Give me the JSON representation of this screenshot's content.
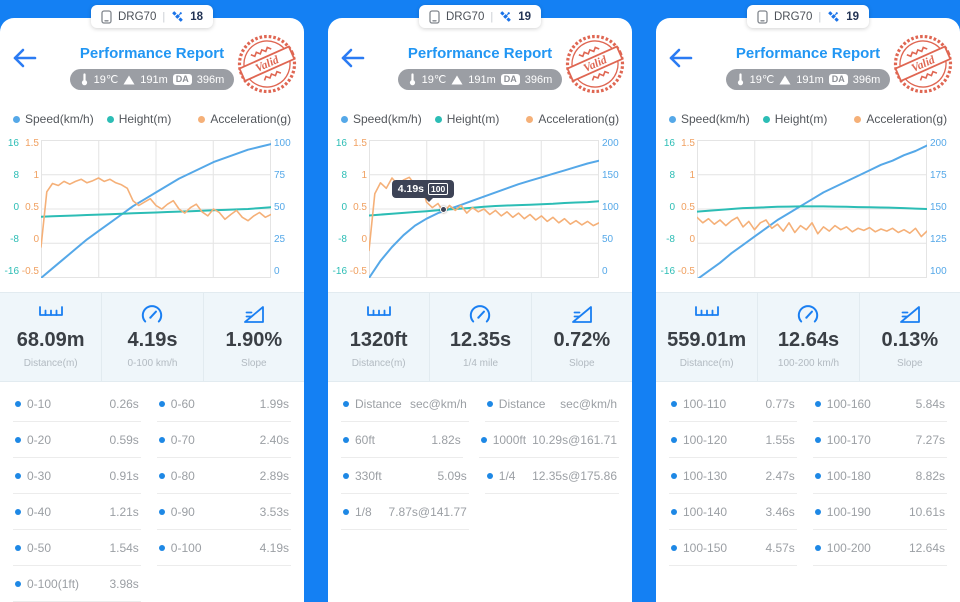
{
  "app": {
    "background_color": "#1480f3",
    "accent_blue": "#2196f3"
  },
  "panels": [
    {
      "statusbar": {
        "device": "DRG70",
        "divider": "|",
        "satellites": "18"
      },
      "header": {
        "title": "Performance Report",
        "temperature": "19℃",
        "altitude": "191m",
        "da_label": "DA",
        "da_value": "396m",
        "stamp_text": "Valid"
      },
      "legend": [
        {
          "label": "Speed(km/h)",
          "color": "#55a8e8"
        },
        {
          "label": "Height(m)",
          "color": "#2cbdb5"
        },
        {
          "label": "Acceleration(g)",
          "color": "#f5b078"
        }
      ],
      "chart": {
        "type": "line",
        "grid": true,
        "left_ticks_teal": [
          "16",
          "8",
          "0",
          "-8",
          "-16"
        ],
        "left_ticks_orange": [
          "1.5",
          "1",
          "0.5",
          "0",
          "-0.5"
        ],
        "right_ticks_blue": [
          "100",
          "75",
          "50",
          "25",
          "0"
        ],
        "axes": {
          "teal": [
            -16,
            16
          ],
          "orange": [
            -0.5,
            1.5
          ],
          "blue": [
            0,
            100
          ]
        },
        "series": [
          {
            "name": "Speed(km/h)",
            "axis": "blue",
            "color": "#55a8e8",
            "width": 2,
            "values": [
              0,
              7,
              14,
              21,
              28,
              34,
              40,
              46,
              52,
              57,
              62,
              67,
              72,
              76,
              80,
              84,
              87,
              90,
              93,
              95,
              97
            ]
          },
          {
            "name": "Height(m)",
            "axis": "teal",
            "color": "#2cbdb5",
            "width": 2,
            "values": [
              -1.8,
              -1.7,
              -1.6,
              -1.5,
              -1.4,
              -1.3,
              -1.2,
              -1.1,
              -1.0,
              -0.9,
              -0.8,
              -0.7,
              -0.6,
              -0.5,
              -0.4,
              -0.3,
              -0.2,
              -0.1,
              0,
              0.2,
              0.4
            ]
          },
          {
            "name": "Acceleration(g)",
            "axis": "orange",
            "color": "#f5b078",
            "width": 1.6,
            "values": [
              -0.05,
              0.75,
              0.87,
              0.84,
              0.9,
              0.86,
              0.9,
              0.93,
              0.88,
              0.91,
              0.95,
              0.9,
              0.93,
              0.88,
              0.85,
              0.8,
              0.62,
              0.55,
              0.6,
              0.65,
              0.55,
              0.5,
              0.57,
              0.62,
              0.5,
              0.44,
              0.52,
              0.57,
              0.46,
              0.4,
              0.5,
              0.45,
              0.35,
              0.42,
              0.48,
              0.38,
              0.33,
              0.4,
              0.45,
              0.38,
              0.42
            ]
          }
        ],
        "tooltip": null
      },
      "stats": [
        {
          "icon": "ruler",
          "value": "68.09m",
          "label": "Distance(m)"
        },
        {
          "icon": "gauge",
          "value": "4.19s",
          "label": "0-100 km/h"
        },
        {
          "icon": "slope",
          "value": "1.90%",
          "label": "Slope"
        }
      ],
      "table": {
        "rows": [
          [
            {
              "label": "0-10",
              "value": "0.26s"
            },
            {
              "label": "0-60",
              "value": "1.99s"
            }
          ],
          [
            {
              "label": "0-20",
              "value": "0.59s"
            },
            {
              "label": "0-70",
              "value": "2.40s"
            }
          ],
          [
            {
              "label": "0-30",
              "value": "0.91s"
            },
            {
              "label": "0-80",
              "value": "2.89s"
            }
          ],
          [
            {
              "label": "0-40",
              "value": "1.21s"
            },
            {
              "label": "0-90",
              "value": "3.53s"
            }
          ],
          [
            {
              "label": "0-50",
              "value": "1.54s"
            },
            {
              "label": "0-100",
              "value": "4.19s"
            }
          ],
          [
            {
              "label": "0-100(1ft)",
              "value": "3.98s"
            },
            null
          ]
        ]
      }
    },
    {
      "statusbar": {
        "device": "DRG70",
        "divider": "|",
        "satellites": "19"
      },
      "header": {
        "title": "Performance Report",
        "temperature": "19℃",
        "altitude": "191m",
        "da_label": "DA",
        "da_value": "396m",
        "stamp_text": "Valid"
      },
      "legend": [
        {
          "label": "Speed(km/h)",
          "color": "#55a8e8"
        },
        {
          "label": "Height(m)",
          "color": "#2cbdb5"
        },
        {
          "label": "Acceleration(g)",
          "color": "#f5b078"
        }
      ],
      "chart": {
        "type": "line",
        "grid": true,
        "left_ticks_teal": [
          "16",
          "8",
          "0",
          "-8",
          "-16"
        ],
        "left_ticks_orange": [
          "1.5",
          "1",
          "0.5",
          "0",
          "-0.5"
        ],
        "right_ticks_blue": [
          "200",
          "150",
          "100",
          "50",
          "0"
        ],
        "axes": {
          "teal": [
            -16,
            16
          ],
          "orange": [
            -0.5,
            1.5
          ],
          "blue": [
            0,
            200
          ]
        },
        "series": [
          {
            "name": "Speed(km/h)",
            "axis": "blue",
            "color": "#55a8e8",
            "width": 2,
            "values": [
              0,
              25,
              45,
              62,
              76,
              86,
              94,
              100,
              106,
              112,
              118,
              124,
              130,
              136,
              141,
              146,
              151,
              156,
              161,
              166,
              170
            ]
          },
          {
            "name": "Height(m)",
            "axis": "teal",
            "color": "#2cbdb5",
            "width": 2,
            "values": [
              -1.5,
              -1.3,
              -1.1,
              -0.9,
              -0.7,
              -0.5,
              -0.3,
              -0.1,
              0.1,
              0.3,
              0.5,
              0.7,
              0.8,
              0.9,
              1.0,
              1.1,
              1.2,
              1.4,
              1.5,
              1.6,
              1.8
            ]
          },
          {
            "name": "Acceleration(g)",
            "axis": "orange",
            "color": "#f5b078",
            "width": 1.6,
            "values": [
              -0.1,
              0.72,
              0.88,
              0.8,
              0.95,
              0.85,
              0.92,
              0.96,
              0.85,
              0.9,
              0.6,
              0.52,
              0.58,
              0.45,
              0.55,
              0.48,
              0.55,
              0.44,
              0.52,
              0.46,
              0.5,
              0.42,
              0.48,
              0.4,
              0.46,
              0.38,
              0.44,
              0.36,
              0.42,
              0.34,
              0.4,
              0.32,
              0.38,
              0.3,
              0.36,
              0.28,
              0.33,
              0.27,
              0.32,
              0.26,
              0.3
            ]
          }
        ],
        "tooltip": {
          "x": 0.325,
          "axis": "blue",
          "value": 100,
          "time_label": "4.19s",
          "value_label": "100"
        }
      },
      "stats": [
        {
          "icon": "ruler",
          "value": "1320ft",
          "label": "Distance(m)"
        },
        {
          "icon": "gauge",
          "value": "12.35s",
          "label": "1/4 mile"
        },
        {
          "icon": "slope",
          "value": "0.72%",
          "label": "Slope"
        }
      ],
      "table": {
        "rows": [
          [
            {
              "label": "Distance",
              "value": "sec@km/h"
            },
            {
              "label": "Distance",
              "value": "sec@km/h"
            }
          ],
          [
            {
              "label": "60ft",
              "value": "1.82s"
            },
            {
              "label": "1000ft",
              "value": "10.29s@161.71"
            }
          ],
          [
            {
              "label": "330ft",
              "value": "5.09s"
            },
            {
              "label": "1/4",
              "value": "12.35s@175.86"
            }
          ],
          [
            {
              "label": "1/8",
              "value": "7.87s@141.77"
            },
            null
          ]
        ]
      }
    },
    {
      "statusbar": {
        "device": "DRG70",
        "divider": "|",
        "satellites": "19"
      },
      "header": {
        "title": "Performance Report",
        "temperature": "19℃",
        "altitude": "191m",
        "da_label": "DA",
        "da_value": "396m",
        "stamp_text": "Valid"
      },
      "legend": [
        {
          "label": "Speed(km/h)",
          "color": "#55a8e8"
        },
        {
          "label": "Height(m)",
          "color": "#2cbdb5"
        },
        {
          "label": "Acceleration(g)",
          "color": "#f5b078"
        }
      ],
      "chart": {
        "type": "line",
        "grid": true,
        "left_ticks_teal": [
          "16",
          "8",
          "0",
          "-8",
          "-16"
        ],
        "left_ticks_orange": [
          "1.5",
          "1",
          "0.5",
          "0",
          "-0.5"
        ],
        "right_ticks_blue": [
          "200",
          "175",
          "150",
          "125",
          "100"
        ],
        "axes": {
          "teal": [
            -16,
            16
          ],
          "orange": [
            -0.5,
            1.5
          ],
          "blue": [
            100,
            200
          ]
        },
        "series": [
          {
            "name": "Speed(km/h)",
            "axis": "blue",
            "color": "#55a8e8",
            "width": 2,
            "values": [
              99,
              105,
              111,
              118,
              124,
              130,
              136,
              142,
              147,
              152,
              157,
              162,
              166,
              170,
              174,
              178,
              182,
              185,
              189,
              192,
              196
            ]
          },
          {
            "name": "Height(m)",
            "axis": "teal",
            "color": "#2cbdb5",
            "width": 2,
            "values": [
              -0.6,
              -0.4,
              -0.2,
              0,
              0.2,
              0.3,
              0.4,
              0.5,
              0.55,
              0.6,
              0.6,
              0.6,
              0.55,
              0.5,
              0.45,
              0.4,
              0.35,
              0.3,
              0.2,
              0.1,
              0
            ]
          },
          {
            "name": "Acceleration(g)",
            "axis": "orange",
            "color": "#f5b078",
            "width": 1.6,
            "values": [
              0.38,
              0.3,
              0.36,
              0.28,
              0.34,
              0.26,
              0.33,
              0.38,
              0.24,
              0.32,
              0.2,
              0.3,
              0.34,
              0.22,
              0.28,
              0.18,
              0.3,
              0.16,
              0.26,
              0.2,
              0.3,
              0.14,
              0.24,
              0.18,
              0.26,
              0.2,
              0.24,
              0.17,
              0.22,
              0.19,
              0.23,
              0.17,
              0.21,
              0.18,
              0.22,
              0.16,
              0.2,
              0.15,
              0.22,
              0.1,
              0.18
            ]
          }
        ],
        "tooltip": null
      },
      "stats": [
        {
          "icon": "ruler",
          "value": "559.01m",
          "label": "Distance(m)"
        },
        {
          "icon": "gauge",
          "value": "12.64s",
          "label": "100-200 km/h"
        },
        {
          "icon": "slope",
          "value": "0.13%",
          "label": "Slope"
        }
      ],
      "table": {
        "rows": [
          [
            {
              "label": "100-110",
              "value": "0.77s"
            },
            {
              "label": "100-160",
              "value": "5.84s"
            }
          ],
          [
            {
              "label": "100-120",
              "value": "1.55s"
            },
            {
              "label": "100-170",
              "value": "7.27s"
            }
          ],
          [
            {
              "label": "100-130",
              "value": "2.47s"
            },
            {
              "label": "100-180",
              "value": "8.82s"
            }
          ],
          [
            {
              "label": "100-140",
              "value": "3.46s"
            },
            {
              "label": "100-190",
              "value": "10.61s"
            }
          ],
          [
            {
              "label": "100-150",
              "value": "4.57s"
            },
            {
              "label": "100-200",
              "value": "12.64s"
            }
          ]
        ]
      }
    }
  ]
}
